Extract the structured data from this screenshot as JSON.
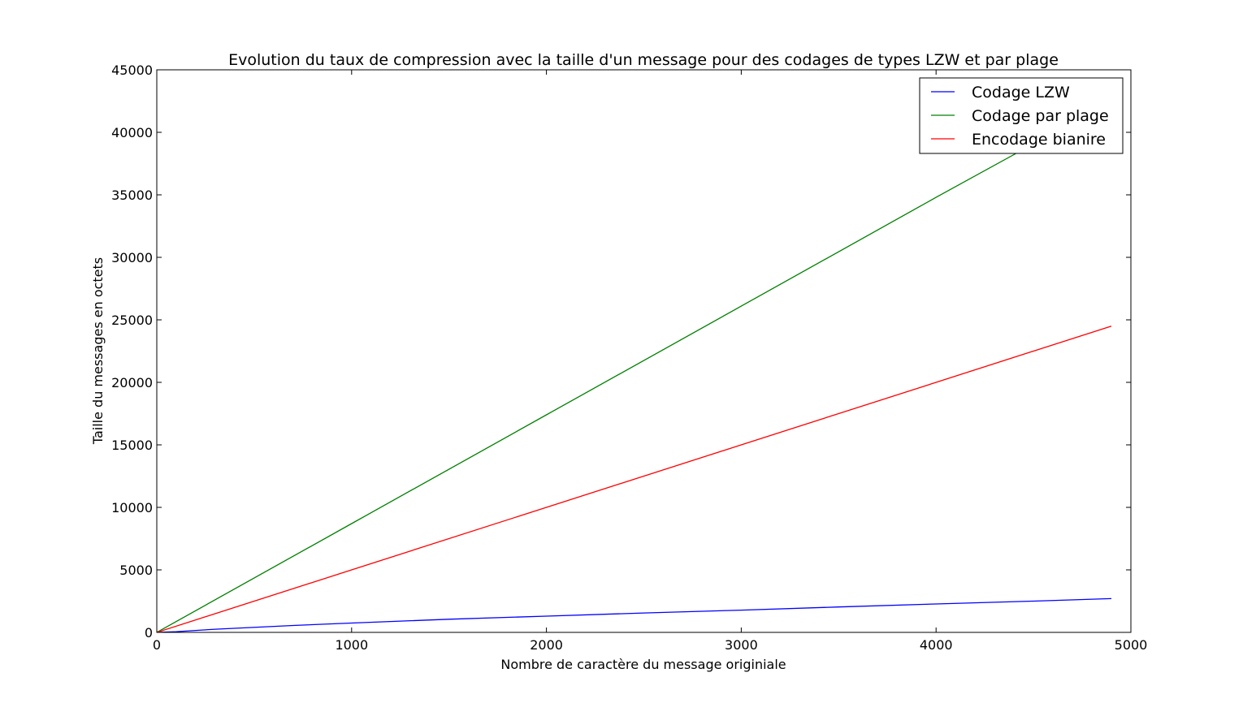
{
  "chart_data": {
    "type": "line",
    "title": "Evolution du taux de compression avec la taille d'un message pour des codages de types LZW et par plage",
    "xlabel": "Nombre de caractère du message originiale",
    "ylabel": "Taille du messages en octets",
    "xlim": [
      0,
      5000
    ],
    "ylim": [
      0,
      45000
    ],
    "xticks": [
      0,
      1000,
      2000,
      3000,
      4000,
      5000
    ],
    "yticks": [
      0,
      5000,
      10000,
      15000,
      20000,
      25000,
      30000,
      35000,
      40000,
      45000
    ],
    "grid": false,
    "legend_position": "top-right",
    "series": [
      {
        "name": "Codage LZW",
        "color": "#0000ff",
        "x": [
          0,
          100,
          300,
          700,
          1000,
          1500,
          2000,
          2500,
          3000,
          3500,
          4000,
          4500,
          4900
        ],
        "y": [
          0,
          60,
          250,
          550,
          750,
          1050,
          1300,
          1550,
          1780,
          2030,
          2270,
          2500,
          2700
        ]
      },
      {
        "name": "Codage par plage",
        "color": "#008000",
        "x": [
          0,
          1000,
          2000,
          3000,
          4000,
          4900
        ],
        "y": [
          0,
          8700,
          17400,
          26100,
          34800,
          42500
        ]
      },
      {
        "name": "Encodage bianire",
        "color": "#ff0000",
        "x": [
          0,
          1000,
          2000,
          3000,
          4000,
          4900
        ],
        "y": [
          0,
          5000,
          10000,
          15000,
          20000,
          24500
        ]
      }
    ]
  }
}
